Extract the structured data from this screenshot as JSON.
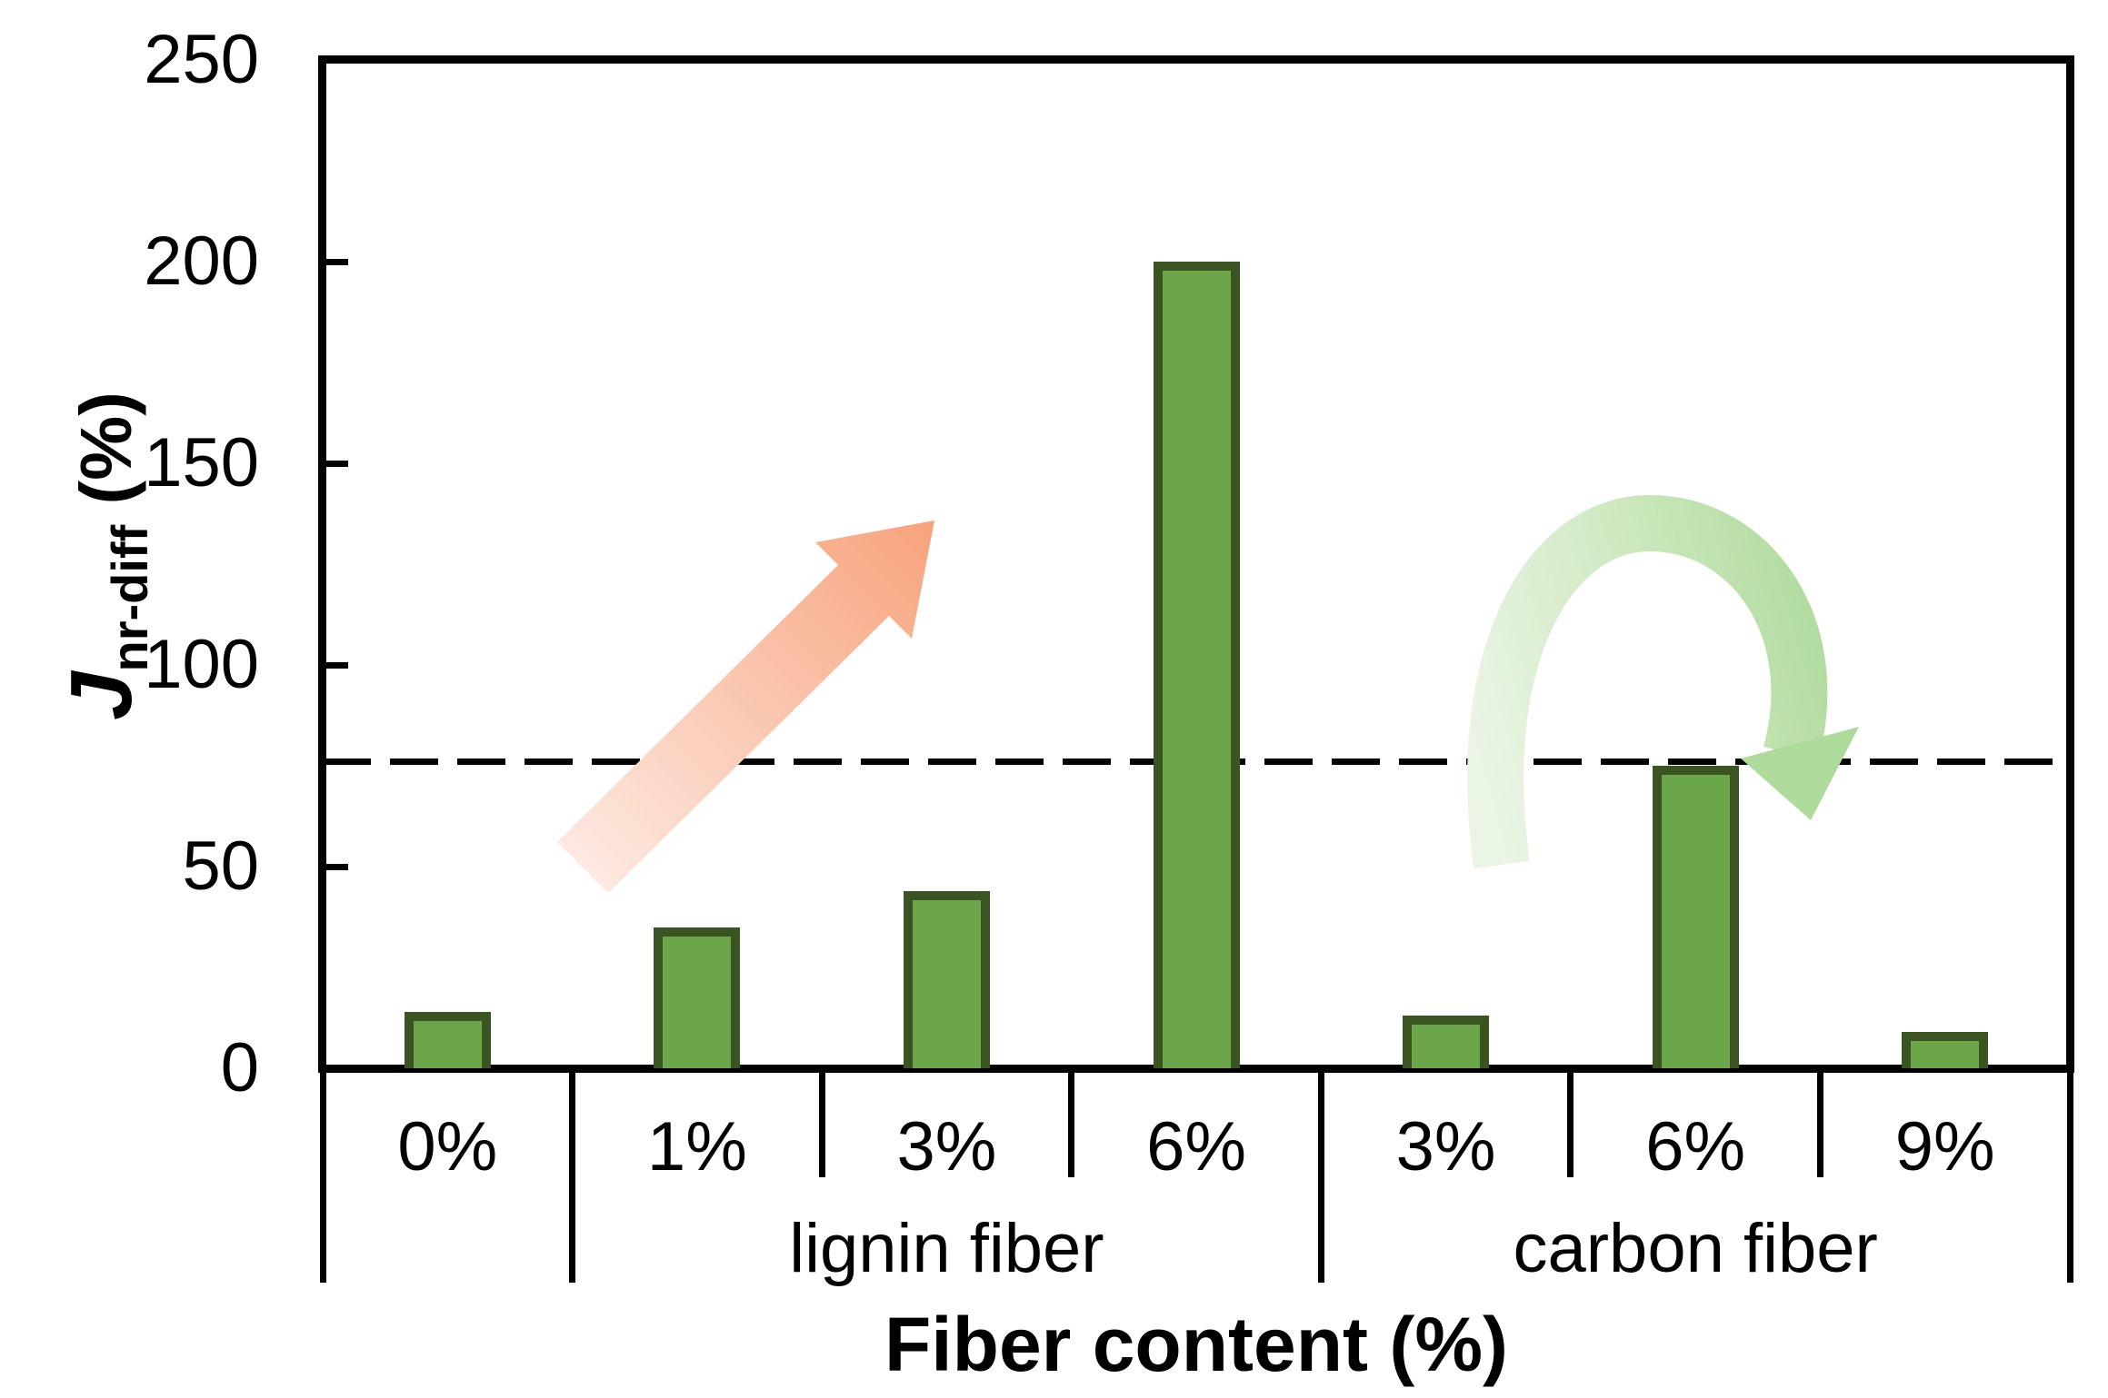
{
  "chart_data": {
    "type": "bar",
    "title": "",
    "xlabel": "Fiber content (%)",
    "ylabel_base": "J",
    "ylabel_sub": "nr-diff",
    "ylabel_unit": " (%)",
    "categories": [
      "0%",
      "1%",
      "3%",
      "6%",
      "3%",
      "6%",
      "9%"
    ],
    "values": [
      14,
      35,
      44,
      200,
      13,
      75,
      9
    ],
    "groups": [
      {
        "label": "lignin fiber",
        "span": [
          1,
          4
        ]
      },
      {
        "label": "carbon fiber",
        "span": [
          4,
          7
        ]
      }
    ],
    "y_ticks": [
      0,
      50,
      100,
      150,
      200,
      250
    ],
    "ylim": [
      0,
      250
    ],
    "reference_line_value": 76,
    "grid": "off",
    "legend": "none",
    "bar_color": "#6CA64A",
    "bar_border_color": "#3A5522",
    "reference_line_color": "#000000",
    "annotations": [
      {
        "name": "increasing-trend-arrow",
        "type": "straight-arrow-up-right",
        "color_from": "#FCE9E1",
        "color_to": "#F8A27B"
      },
      {
        "name": "decrease-after-peak-arch-arrow",
        "type": "curved-arch-arrow-down",
        "color_from": "#EBF5E6",
        "color_to": "#AEDA9B"
      }
    ]
  }
}
